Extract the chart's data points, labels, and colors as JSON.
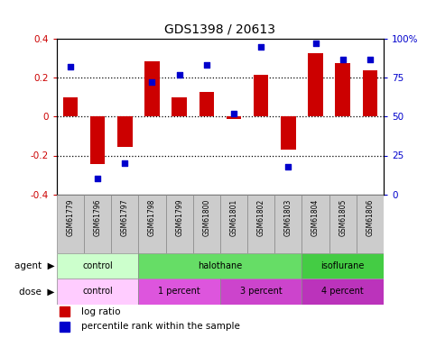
{
  "title": "GDS1398 / 20613",
  "samples": [
    "GSM61779",
    "GSM61796",
    "GSM61797",
    "GSM61798",
    "GSM61799",
    "GSM61800",
    "GSM61801",
    "GSM61802",
    "GSM61803",
    "GSM61804",
    "GSM61805",
    "GSM61806"
  ],
  "log_ratio": [
    0.1,
    -0.245,
    -0.155,
    0.285,
    0.1,
    0.125,
    -0.01,
    0.215,
    -0.17,
    0.325,
    0.275,
    0.24
  ],
  "percentile_rank": [
    82,
    10,
    20,
    72,
    77,
    83,
    52,
    95,
    18,
    97,
    87,
    87
  ],
  "ylim": [
    -0.4,
    0.4
  ],
  "yticks": [
    -0.4,
    -0.2,
    0.0,
    0.2,
    0.4
  ],
  "ytick_labels": [
    "-0.4",
    "-0.2",
    "0",
    "0.2",
    "0.4"
  ],
  "right_yticks": [
    0,
    25,
    50,
    75,
    100
  ],
  "right_ytick_labels": [
    "0",
    "25",
    "50",
    "75",
    "100%"
  ],
  "bar_color": "#cc0000",
  "dot_color": "#0000cc",
  "agent_groups": [
    {
      "label": "control",
      "start": 0,
      "end": 3,
      "color": "#ccffcc"
    },
    {
      "label": "halothane",
      "start": 3,
      "end": 9,
      "color": "#66dd66"
    },
    {
      "label": "isoflurane",
      "start": 9,
      "end": 12,
      "color": "#44cc44"
    }
  ],
  "dose_groups": [
    {
      "label": "control",
      "start": 0,
      "end": 3,
      "color": "#ffccff"
    },
    {
      "label": "1 percent",
      "start": 3,
      "end": 6,
      "color": "#dd55dd"
    },
    {
      "label": "3 percent",
      "start": 6,
      "end": 9,
      "color": "#cc44cc"
    },
    {
      "label": "4 percent",
      "start": 9,
      "end": 12,
      "color": "#bb33bb"
    }
  ],
  "xlabel_area_color": "#cccccc",
  "bg_color": "#ffffff"
}
